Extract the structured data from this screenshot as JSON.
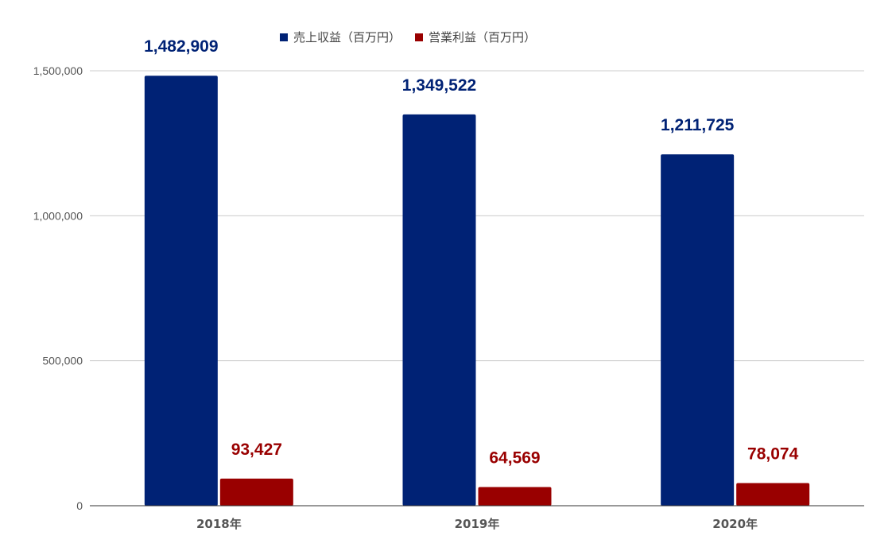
{
  "chart_data": {
    "type": "bar",
    "categories": [
      "2018年",
      "2019年",
      "2020年"
    ],
    "series": [
      {
        "name": "売上収益（百万円）",
        "color": "#002275",
        "values": [
          1482909,
          1349522,
          1211725
        ],
        "labels": [
          "1,482,909",
          "1,349,522",
          "1,211,725"
        ]
      },
      {
        "name": "営業利益（百万円）",
        "color": "#990000",
        "values": [
          93427,
          64569,
          78074
        ],
        "labels": [
          "93,427",
          "64,569",
          "78,074"
        ]
      }
    ],
    "ylim": [
      0,
      1500000
    ],
    "yticks": [
      0,
      500000,
      1000000,
      1500000
    ],
    "ytick_labels": [
      "0",
      "500,000",
      "1,000,000",
      "1,500,000"
    ],
    "grid": true,
    "legend_position": "top"
  }
}
